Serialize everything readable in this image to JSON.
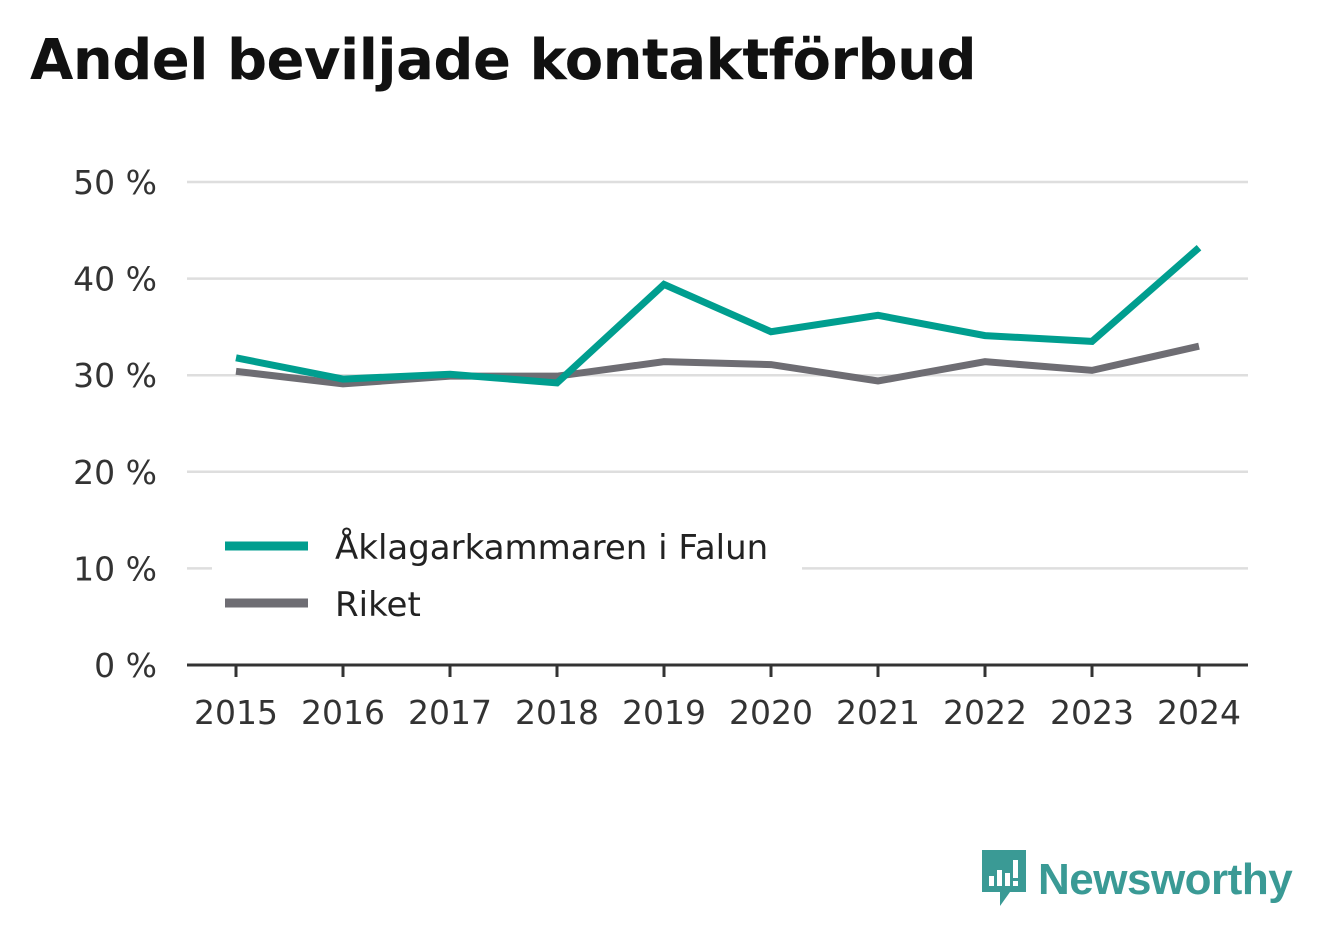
{
  "title": "Andel beviljade kontaktförbud",
  "brand": {
    "name": "Newsworthy",
    "color": "#3a9a95"
  },
  "chart_data": {
    "type": "line",
    "x": [
      "2015",
      "2016",
      "2017",
      "2018",
      "2019",
      "2020",
      "2021",
      "2022",
      "2023",
      "2024"
    ],
    "series": [
      {
        "name": "Åklagarkammaren i Falun",
        "color": "#009e8f",
        "values": [
          31.8,
          29.6,
          30.1,
          29.2,
          39.4,
          34.5,
          36.2,
          34.1,
          33.5,
          43.2
        ]
      },
      {
        "name": "Riket",
        "color": "#6e6d73",
        "values": [
          30.4,
          29.1,
          29.9,
          29.9,
          31.4,
          31.1,
          29.4,
          31.4,
          30.5,
          33.0
        ]
      }
    ],
    "y_ticks": [
      "0 %",
      "10 %",
      "20 %",
      "30 %",
      "40 %",
      "50 %"
    ],
    "ylim": [
      0,
      50
    ],
    "grid": true,
    "legend_position": "lower-left"
  }
}
